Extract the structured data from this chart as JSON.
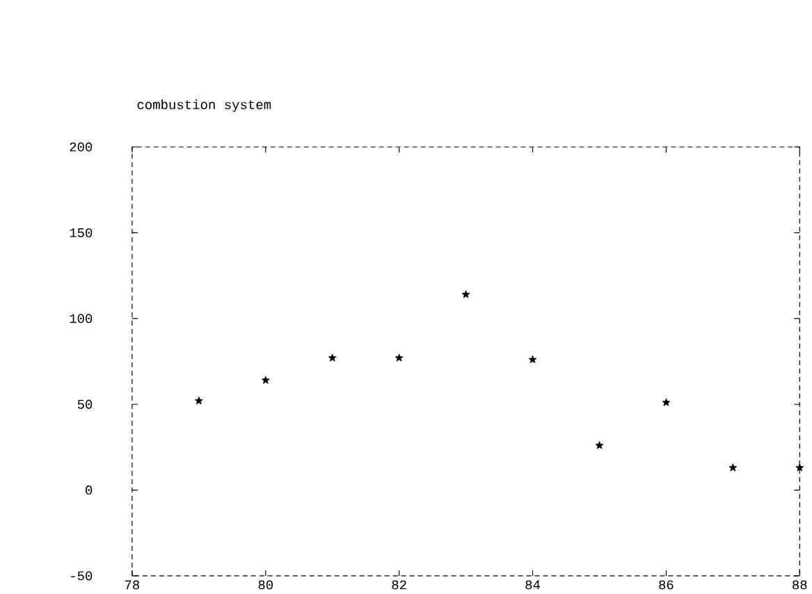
{
  "chart_data": {
    "type": "scatter",
    "title": "combustion system",
    "x": [
      79,
      80,
      81,
      82,
      83,
      84,
      85,
      86,
      87,
      88
    ],
    "values": [
      52,
      64,
      77,
      77,
      114,
      76,
      26,
      51,
      13,
      13
    ],
    "color": "#000000",
    "marker": "star",
    "xlim": [
      78,
      88
    ],
    "xticks": [
      78,
      80,
      82,
      84,
      86,
      88
    ],
    "ylim": [
      -50,
      200
    ],
    "yticks": [
      -50,
      0,
      50,
      100,
      150,
      200
    ],
    "grid": false
  }
}
